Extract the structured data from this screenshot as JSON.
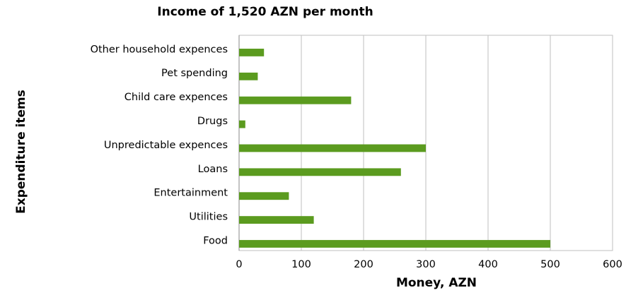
{
  "chart_data": {
    "type": "bar",
    "orientation": "horizontal",
    "title": "Income of 1,520 AZN per month",
    "x_label": "Money, AZN",
    "y_label": "Expenditure items",
    "categories": [
      "Food",
      "Utilities",
      "Entertainment",
      "Loans",
      "Unpredictable expences",
      "Drugs",
      "Child care expences",
      "Pet spending",
      "Other household expences"
    ],
    "values": [
      500,
      120,
      80,
      260,
      300,
      10,
      180,
      30,
      40
    ],
    "color": "#5b9b1f",
    "xlim": [
      0,
      600
    ],
    "xticks": [
      0,
      100,
      200,
      300,
      400,
      500,
      600
    ],
    "grid": true
  }
}
